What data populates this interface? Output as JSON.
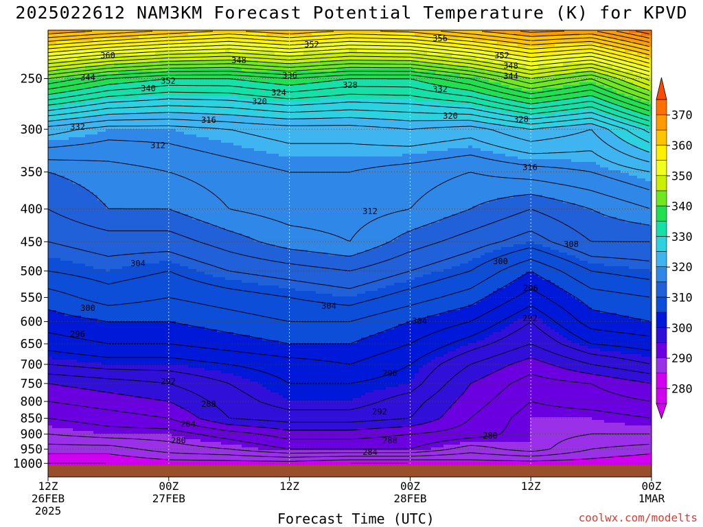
{
  "title": "2025022612 NAM3KM Forecast Potential Temperature (K) for KPVD",
  "credit": "coolwx.com/modelts",
  "chart_data": {
    "type": "heatmap",
    "title": "2025022612 NAM3KM Forecast Potential Temperature (K) for KPVD",
    "xlabel": "Forecast Time (UTC)",
    "ylabel": "",
    "y_axis": "pressure (hPa), log scale, inverted",
    "ylim": [
      1050,
      200
    ],
    "y_ticks": [
      "250",
      "300",
      "350",
      "400",
      "450",
      "500",
      "550",
      "600",
      "650",
      "700",
      "750",
      "800",
      "850",
      "900",
      "950",
      "1000"
    ],
    "x_ticks": [
      {
        "hour": 0,
        "lines": [
          "12Z",
          "26FEB",
          "2025"
        ]
      },
      {
        "hour": 12,
        "lines": [
          "00Z",
          "27FEB"
        ]
      },
      {
        "hour": 24,
        "lines": [
          "12Z"
        ]
      },
      {
        "hour": 36,
        "lines": [
          "00Z",
          "28FEB"
        ]
      },
      {
        "hour": 48,
        "lines": [
          "12Z"
        ]
      },
      {
        "hour": 60,
        "lines": [
          "00Z",
          "1MAR"
        ]
      }
    ],
    "grid": true,
    "colorbar": {
      "ticks": [
        "370",
        "360",
        "350",
        "340",
        "330",
        "320",
        "310",
        "300",
        "290",
        "280"
      ],
      "min": 275,
      "max": 375,
      "stops": [
        {
          "v": 275,
          "c": "#d000f0"
        },
        {
          "v": 280,
          "c": "#9a30e8"
        },
        {
          "v": 285,
          "c": "#6a00e0"
        },
        {
          "v": 290,
          "c": "#3010d8"
        },
        {
          "v": 295,
          "c": "#0018d8"
        },
        {
          "v": 300,
          "c": "#0c4ed8"
        },
        {
          "v": 305,
          "c": "#2060d8"
        },
        {
          "v": 310,
          "c": "#2f88e8"
        },
        {
          "v": 315,
          "c": "#3eb4f0"
        },
        {
          "v": 320,
          "c": "#2cd2e0"
        },
        {
          "v": 325,
          "c": "#14e0a8"
        },
        {
          "v": 330,
          "c": "#20e050"
        },
        {
          "v": 335,
          "c": "#70e820"
        },
        {
          "v": 340,
          "c": "#c8f000"
        },
        {
          "v": 345,
          "c": "#f0ff20"
        },
        {
          "v": 350,
          "c": "#fff000"
        },
        {
          "v": 355,
          "c": "#ffc400"
        },
        {
          "v": 360,
          "c": "#ff9a00"
        },
        {
          "v": 365,
          "c": "#ff7000"
        },
        {
          "v": 370,
          "c": "#ff4a00"
        },
        {
          "v": 375,
          "c": "#ff3000"
        }
      ]
    },
    "hours": [
      0,
      6,
      12,
      18,
      24,
      30,
      36,
      42,
      48,
      54,
      60
    ],
    "levels": [
      1000,
      950,
      900,
      850,
      800,
      750,
      700,
      650,
      600,
      550,
      500,
      450,
      400,
      350,
      300,
      250,
      210
    ],
    "theta": [
      [
        278,
        278,
        279,
        279,
        279,
        278,
        278,
        279,
        279,
        279,
        278
      ],
      [
        281,
        281,
        283,
        284,
        286,
        286,
        286,
        283,
        285,
        282,
        281
      ],
      [
        284,
        285,
        285,
        287,
        289,
        289,
        288,
        287,
        285,
        284,
        284
      ],
      [
        286,
        287,
        288,
        292,
        293,
        293,
        292,
        288,
        285,
        285,
        286
      ],
      [
        288,
        289,
        290,
        293,
        295,
        295,
        293,
        289,
        286,
        287,
        288
      ],
      [
        290,
        291,
        292,
        294,
        296,
        296,
        295,
        290,
        287,
        288,
        290
      ],
      [
        294,
        295,
        295,
        296,
        297,
        298,
        296,
        292,
        289,
        292,
        294
      ],
      [
        297,
        298,
        298,
        299,
        300,
        300,
        298,
        295,
        292,
        296,
        297
      ],
      [
        299,
        300,
        300,
        301,
        302,
        302,
        300,
        298,
        294,
        299,
        300
      ],
      [
        301,
        303,
        302,
        303,
        304,
        305,
        303,
        301,
        297,
        301,
        302
      ],
      [
        304,
        305,
        304,
        306,
        307,
        308,
        306,
        304,
        300,
        304,
        305
      ],
      [
        306,
        307,
        307,
        309,
        311,
        312,
        309,
        307,
        305,
        308,
        308
      ],
      [
        308,
        310,
        310,
        312,
        313,
        313,
        312,
        310,
        308,
        310,
        312
      ],
      [
        310,
        311,
        312,
        313,
        314,
        314,
        313,
        312,
        313,
        314,
        316
      ],
      [
        317,
        315,
        315,
        316,
        317,
        317,
        318,
        317,
        320,
        318,
        325
      ],
      [
        336,
        332,
        330,
        330,
        332,
        330,
        330,
        334,
        340,
        336,
        345
      ],
      [
        362,
        360,
        358,
        356,
        358,
        356,
        357,
        360,
        363,
        362,
        368
      ]
    ],
    "contour_labels": [
      "360",
      "352",
      "348",
      "356",
      "352",
      "348",
      "344",
      "344",
      "352",
      "340",
      "336",
      "328",
      "332",
      "324",
      "320",
      "332",
      "316",
      "320",
      "328",
      "312",
      "316",
      "312",
      "308",
      "304",
      "304",
      "300",
      "304",
      "296",
      "300",
      "296",
      "292",
      "292",
      "296",
      "292",
      "288",
      "284",
      "288",
      "280",
      "284",
      "280"
    ],
    "terrain_label": ""
  }
}
